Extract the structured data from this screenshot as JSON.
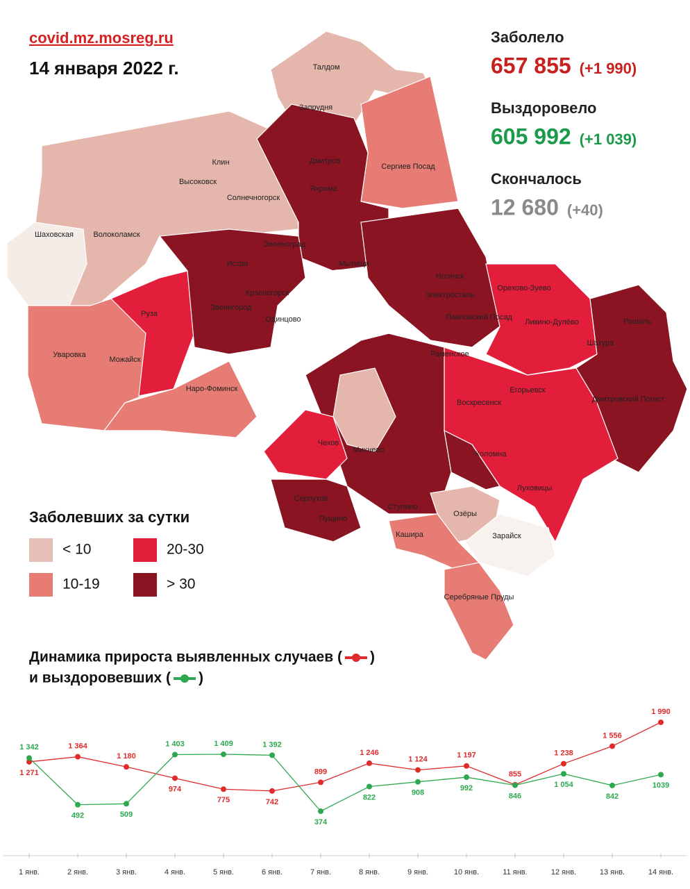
{
  "header": {
    "site": "covid.mz.mosreg.ru",
    "date": "14 января 2022 г."
  },
  "stats": [
    {
      "label": "Заболело",
      "value": "657 855",
      "delta": "(+1 990)"
    },
    {
      "label": "Выздоровело",
      "value": "605 992",
      "delta": "(+1 039)"
    },
    {
      "label": "Скончалось",
      "value": "12 680",
      "delta": "(+40)"
    }
  ],
  "legend": {
    "title": "Заболевших за сутки",
    "items": [
      "< 10",
      "20-30",
      "10-19",
      "> 30"
    ]
  },
  "map": {
    "labels": [
      "Талдом",
      "Запрудня",
      "Дмитров",
      "Яхрома",
      "Клин",
      "Высоковск",
      "Сергиев Посад",
      "Солнечногорск",
      "Шаховская",
      "Волоколамск",
      "Зеленоград",
      "Истра",
      "Мытищи",
      "Ногинск",
      "Электросталь",
      "Красногорск",
      "Звенигород",
      "Одинцово",
      "Павловский Посад",
      "Орехово-Зуево",
      "Руза",
      "Ликино-Дулёво",
      "Рошаль",
      "Шатура",
      "Уваровка",
      "Можайск",
      "Раменское",
      "Наро-Фоминск",
      "Воскресенск",
      "Егорьевск",
      "Дмитровский Погост",
      "Чехов",
      "Михнево",
      "Коломна",
      "Луховицы",
      "Серпухов",
      "Ступино",
      "Пущино",
      "Озёры",
      "Кашира",
      "Зарайск",
      "Серебряные Пруды"
    ]
  },
  "chart_data": {
    "type": "line",
    "title_lines": [
      [
        "Динамика прироста выявленных случаев (",
        ")"
      ],
      [
        "и выздоровевших (",
        ")"
      ]
    ],
    "categories": [
      "1 янв.",
      "2 янв.",
      "3 янв.",
      "4 янв.",
      "5 янв.",
      "6 янв.",
      "7 янв.",
      "8 янв.",
      "9 янв.",
      "10 янв.",
      "11 янв.",
      "12 янв.",
      "13 янв.",
      "14 янв."
    ],
    "series": [
      {
        "color": "#e02b2b",
        "values": [
          1271,
          1364,
          1180,
          974,
          775,
          742,
          899,
          1246,
          1124,
          1197,
          855,
          1238,
          1556,
          1990
        ],
        "value_labels": [
          "1 271",
          "1 364",
          "1 180",
          "974",
          "775",
          "742",
          "899",
          "1 246",
          "1 124",
          "1 197",
          "855",
          "1 238",
          "1 556",
          "1 990"
        ]
      },
      {
        "color": "#2ea84f",
        "values": [
          1342,
          492,
          509,
          1403,
          1409,
          1392,
          374,
          822,
          908,
          992,
          846,
          1054,
          842,
          1039
        ],
        "value_labels": [
          "1 342",
          "492",
          "509",
          "1 403",
          "1 409",
          "1 392",
          "374",
          "822",
          "908",
          "992",
          "846",
          "1 054",
          "842",
          "1039"
        ]
      }
    ]
  }
}
